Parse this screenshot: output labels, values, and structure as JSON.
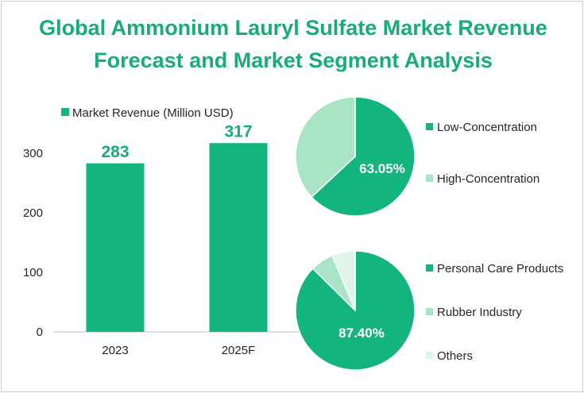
{
  "title": {
    "line1": "Global Ammonium Lauryl Sulfate Market Revenue",
    "line2": "Forecast and Market Segment Analysis"
  },
  "colors": {
    "primary": "#14b47f",
    "light": "#a9e4c4",
    "lighter": "#dff5ea",
    "title": "#18ad77",
    "axis": "#bfbfbf",
    "text": "#262626"
  },
  "chart_data": [
    {
      "type": "bar",
      "legend": "Market Revenue (Million USD)",
      "categories": [
        "2023",
        "2025F"
      ],
      "values": [
        283,
        317
      ],
      "value_labels": [
        "283",
        "317"
      ],
      "ylim": [
        0,
        300
      ],
      "yticks": [
        "0",
        "100",
        "200",
        "300"
      ],
      "ytick_values": [
        0,
        100,
        200,
        300
      ],
      "xlabel": "",
      "ylabel": ""
    },
    {
      "type": "pie",
      "slices": [
        {
          "name": "Low-Concentration",
          "value": 63.05,
          "color": "#14b47f"
        },
        {
          "name": "High-Concentration",
          "value": 36.95,
          "color": "#a9e4c4"
        }
      ],
      "data_label": "63.05%"
    },
    {
      "type": "pie",
      "slices": [
        {
          "name": "Personal Care Products",
          "value": 87.4,
          "color": "#14b47f"
        },
        {
          "name": "Rubber Industry",
          "value": 6.3,
          "color": "#a9e4c4"
        },
        {
          "name": "Others",
          "value": 6.3,
          "color": "#dff5ea"
        }
      ],
      "data_label": "87.40%"
    }
  ]
}
